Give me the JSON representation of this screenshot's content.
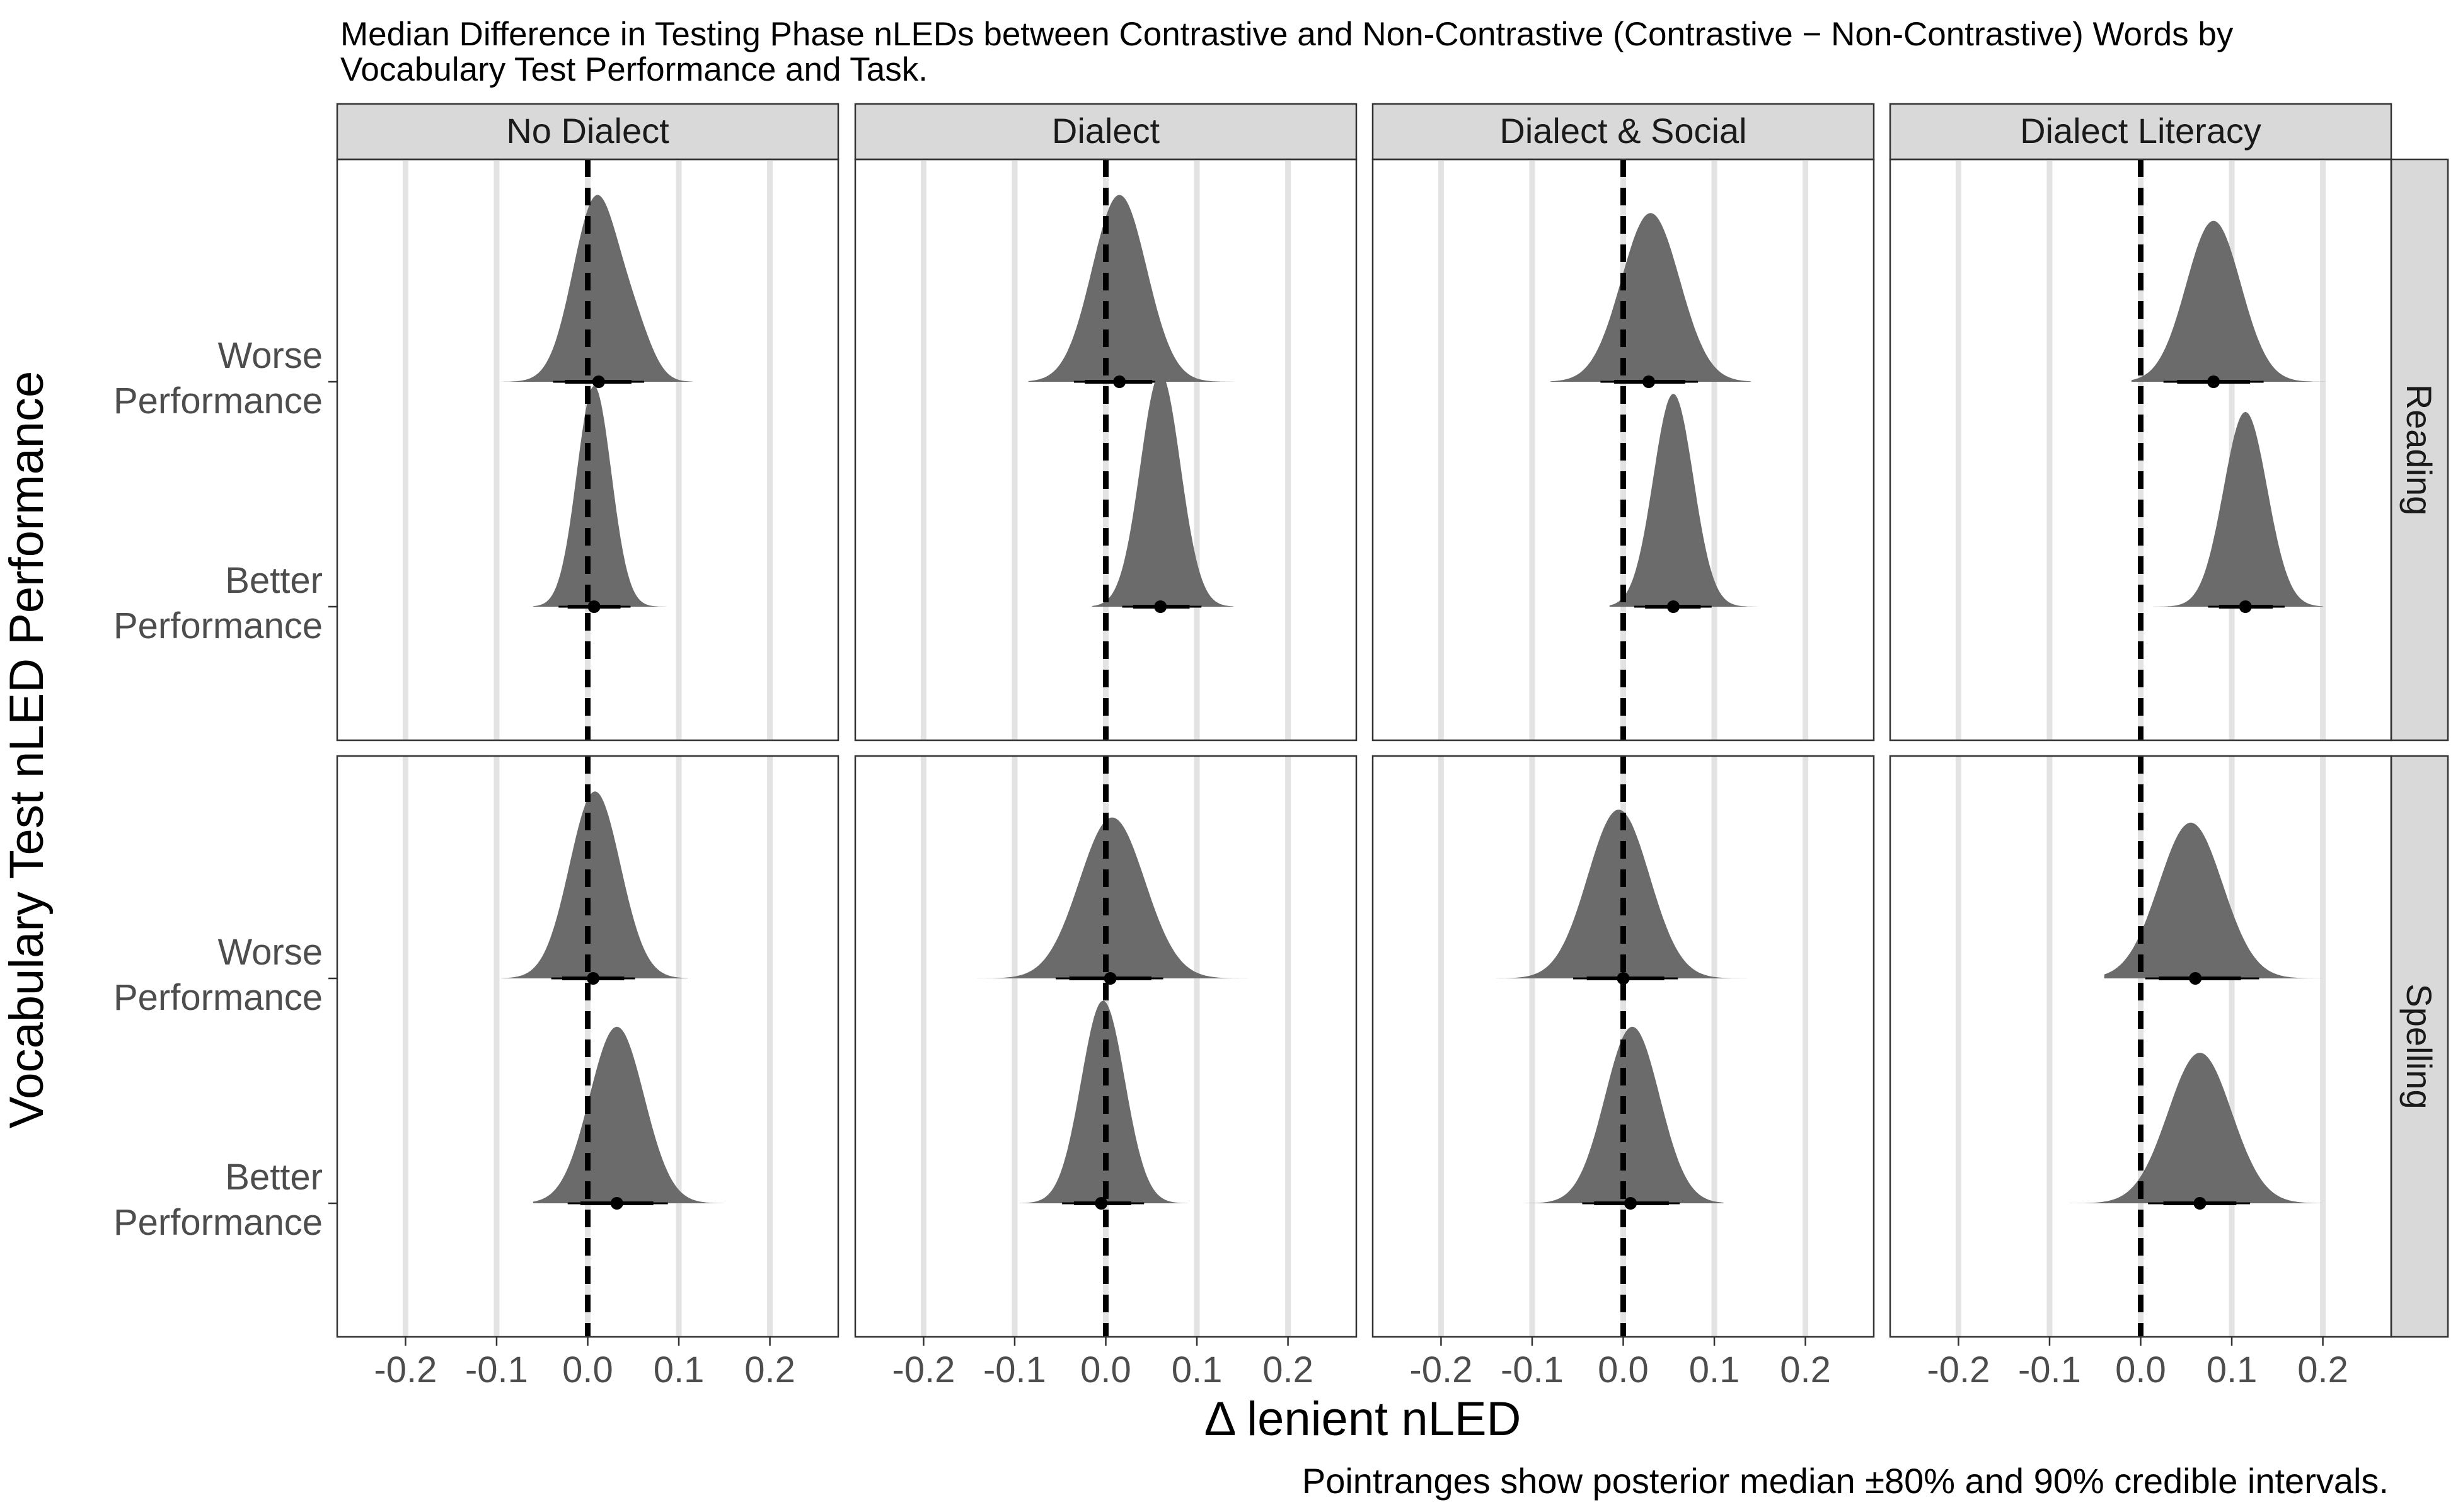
{
  "chart_data": {
    "type": "density",
    "title_lines": [
      "Median Difference in Testing Phase nLEDs between Contrastive and Non-Contrastive (Contrastive − Non-Contrastive) Words by",
      "Vocabulary Test Performance and Task."
    ],
    "xlabel": "Δ lenient nLED",
    "ylabel": "Vocabulary Test nLED Performance",
    "caption": "Pointranges show posterior median ±80% and 90% credible intervals.",
    "xlim": [
      -0.275,
      0.275
    ],
    "x_ticks": [
      -0.2,
      -0.1,
      0.0,
      0.1,
      0.2
    ],
    "x_tick_labels": [
      "-0.2",
      "-0.1",
      "0.0",
      "0.1",
      "0.2"
    ],
    "reference_line_x": 0.0,
    "columns": [
      "No Dialect",
      "Dialect",
      "Dialect & Social",
      "Dialect Literacy"
    ],
    "rows": [
      "Reading",
      "Spelling"
    ],
    "y_categories": [
      {
        "key": "worse",
        "lines": [
          "Worse",
          "Performance"
        ]
      },
      {
        "key": "better",
        "lines": [
          "Better",
          "Performance"
        ]
      }
    ],
    "colors": {
      "density": "#6b6b6b",
      "grid": "#e3e3e3",
      "strip_fill": "#d9d9d9",
      "panel_border": "#333333",
      "reference_line": "#000000",
      "point": "#000000"
    },
    "panels": [
      {
        "column": "No Dialect",
        "row": "Reading",
        "distributions": [
          {
            "group": "worse",
            "median": 0.012,
            "ci80": [
              -0.025,
              0.048
            ],
            "ci90": [
              -0.038,
              0.062
            ],
            "range": [
              -0.095,
              0.115
            ],
            "peak_height": 0.72,
            "components": [
              {
                "mu": 0.01,
                "sd": 0.026,
                "w": 1.0
              },
              {
                "mu": 0.055,
                "sd": 0.018,
                "w": 0.18
              }
            ]
          },
          {
            "group": "better",
            "median": 0.007,
            "ci80": [
              -0.022,
              0.036
            ],
            "ci90": [
              -0.032,
              0.047
            ],
            "range": [
              -0.06,
              0.088
            ],
            "peak_height": 0.85,
            "components": [
              {
                "mu": 0.007,
                "sd": 0.019,
                "w": 1.0
              }
            ]
          }
        ]
      },
      {
        "column": "Dialect",
        "row": "Reading",
        "distributions": [
          {
            "group": "worse",
            "median": 0.015,
            "ci80": [
              -0.023,
              0.051
            ],
            "ci90": [
              -0.035,
              0.063
            ],
            "range": [
              -0.085,
              0.15
            ],
            "peak_height": 0.72,
            "components": [
              {
                "mu": 0.015,
                "sd": 0.03,
                "w": 1.0
              }
            ]
          },
          {
            "group": "better",
            "median": 0.06,
            "ci80": [
              0.03,
              0.092
            ],
            "ci90": [
              0.018,
              0.105
            ],
            "range": [
              -0.015,
              0.14
            ],
            "peak_height": 0.9,
            "components": [
              {
                "mu": 0.06,
                "sd": 0.022,
                "w": 1.0
              }
            ]
          }
        ]
      },
      {
        "column": "Dialect & Social",
        "row": "Reading",
        "distributions": [
          {
            "group": "worse",
            "median": 0.028,
            "ci80": [
              -0.01,
              0.068
            ],
            "ci90": [
              -0.025,
              0.082
            ],
            "range": [
              -0.08,
              0.14
            ],
            "peak_height": 0.65,
            "components": [
              {
                "mu": 0.03,
                "sd": 0.032,
                "w": 1.0
              }
            ]
          },
          {
            "group": "better",
            "median": 0.055,
            "ci80": [
              0.024,
              0.085
            ],
            "ci90": [
              0.012,
              0.097
            ],
            "range": [
              -0.015,
              0.15
            ],
            "peak_height": 0.82,
            "components": [
              {
                "mu": 0.055,
                "sd": 0.022,
                "w": 1.0
              }
            ]
          }
        ]
      },
      {
        "column": "Dialect Literacy",
        "row": "Reading",
        "distributions": [
          {
            "group": "worse",
            "median": 0.08,
            "ci80": [
              0.04,
              0.12
            ],
            "ci90": [
              0.025,
              0.135
            ],
            "range": [
              -0.01,
              0.23
            ],
            "peak_height": 0.62,
            "components": [
              {
                "mu": 0.08,
                "sd": 0.03,
                "w": 1.0
              }
            ]
          },
          {
            "group": "better",
            "median": 0.115,
            "ci80": [
              0.086,
              0.145
            ],
            "ci90": [
              0.074,
              0.158
            ],
            "range": [
              0.01,
              0.2
            ],
            "peak_height": 0.75,
            "components": [
              {
                "mu": 0.115,
                "sd": 0.024,
                "w": 1.0
              }
            ]
          }
        ]
      },
      {
        "column": "No Dialect",
        "row": "Spelling",
        "distributions": [
          {
            "group": "worse",
            "median": 0.006,
            "ci80": [
              -0.028,
              0.04
            ],
            "ci90": [
              -0.04,
              0.052
            ],
            "range": [
              -0.095,
              0.11
            ],
            "peak_height": 0.72,
            "components": [
              {
                "mu": 0.008,
                "sd": 0.028,
                "w": 1.0
              }
            ]
          },
          {
            "group": "better",
            "median": 0.032,
            "ci80": [
              -0.008,
              0.072
            ],
            "ci90": [
              -0.022,
              0.088
            ],
            "range": [
              -0.06,
              0.15
            ],
            "peak_height": 0.68,
            "components": [
              {
                "mu": 0.032,
                "sd": 0.03,
                "w": 1.0
              }
            ]
          }
        ]
      },
      {
        "column": "Dialect",
        "row": "Spelling",
        "distributions": [
          {
            "group": "worse",
            "median": 0.005,
            "ci80": [
              -0.04,
              0.05
            ],
            "ci90": [
              -0.055,
              0.063
            ],
            "range": [
              -0.15,
              0.165
            ],
            "peak_height": 0.62,
            "components": [
              {
                "mu": 0.007,
                "sd": 0.036,
                "w": 1.0
              }
            ]
          },
          {
            "group": "better",
            "median": -0.005,
            "ci80": [
              -0.035,
              0.028
            ],
            "ci90": [
              -0.048,
              0.042
            ],
            "range": [
              -0.095,
              0.09
            ],
            "peak_height": 0.78,
            "components": [
              {
                "mu": -0.003,
                "sd": 0.024,
                "w": 1.0
              }
            ]
          }
        ]
      },
      {
        "column": "Dialect & Social",
        "row": "Spelling",
        "distributions": [
          {
            "group": "worse",
            "median": 0.0,
            "ci80": [
              -0.04,
              0.045
            ],
            "ci90": [
              -0.055,
              0.06
            ],
            "range": [
              -0.14,
              0.15
            ],
            "peak_height": 0.65,
            "components": [
              {
                "mu": -0.005,
                "sd": 0.034,
                "w": 1.0
              }
            ]
          },
          {
            "group": "better",
            "median": 0.008,
            "ci80": [
              -0.032,
              0.05
            ],
            "ci90": [
              -0.045,
              0.062
            ],
            "range": [
              -0.11,
              0.11
            ],
            "peak_height": 0.68,
            "components": [
              {
                "mu": 0.01,
                "sd": 0.03,
                "w": 1.0
              }
            ]
          }
        ]
      },
      {
        "column": "Dialect Literacy",
        "row": "Spelling",
        "distributions": [
          {
            "group": "worse",
            "median": 0.06,
            "ci80": [
              0.02,
              0.11
            ],
            "ci90": [
              0.005,
              0.13
            ],
            "range": [
              -0.04,
              0.235
            ],
            "peak_height": 0.6,
            "components": [
              {
                "mu": 0.055,
                "sd": 0.035,
                "w": 1.0
              }
            ]
          },
          {
            "group": "better",
            "median": 0.065,
            "ci80": [
              0.025,
              0.105
            ],
            "ci90": [
              0.008,
              0.12
            ],
            "range": [
              -0.1,
              0.2
            ],
            "peak_height": 0.58,
            "components": [
              {
                "mu": 0.065,
                "sd": 0.035,
                "w": 1.0
              }
            ]
          }
        ]
      }
    ]
  }
}
